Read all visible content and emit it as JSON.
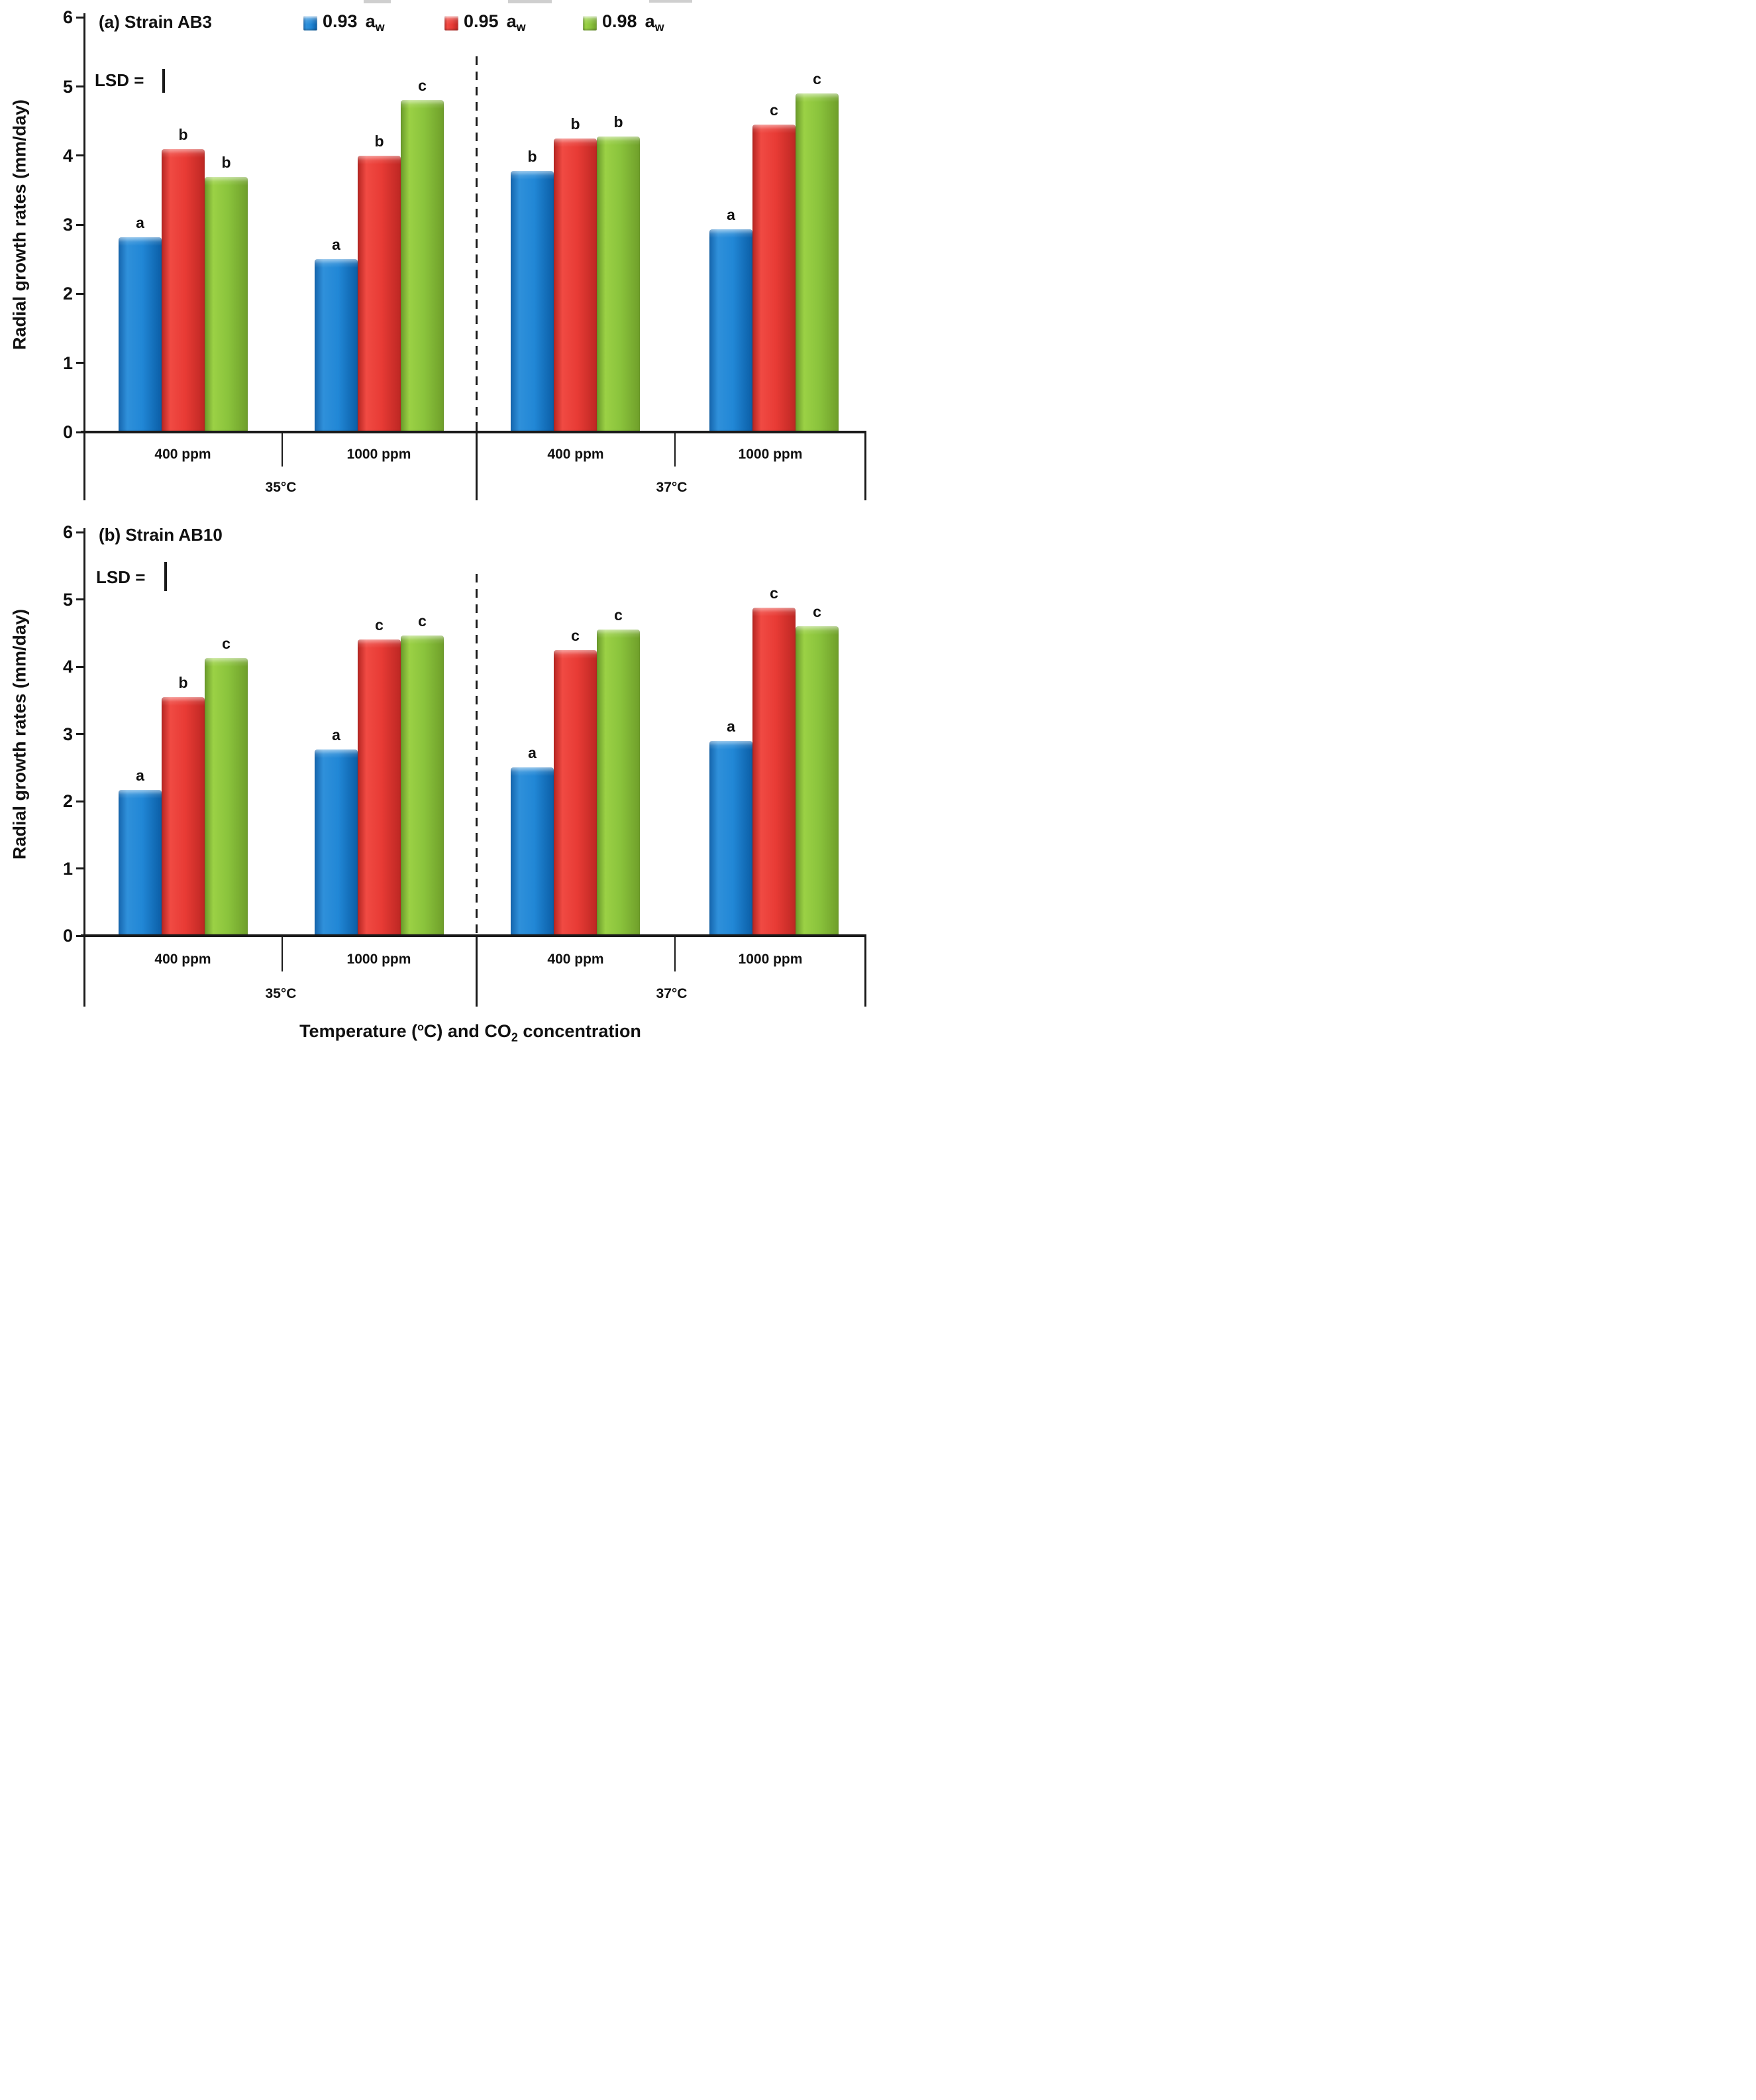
{
  "figure": {
    "legend": [
      {
        "value": "0.93",
        "symbol": "a",
        "sub": "w",
        "series_color": "#1f7ecf"
      },
      {
        "value": "0.95",
        "symbol": "a",
        "sub": "w",
        "series_color": "#e83b35"
      },
      {
        "value": "0.98",
        "symbol": "a",
        "sub": "w",
        "series_color": "#8ac33c"
      }
    ],
    "xaxis_title": {
      "t1": "Temperature (",
      "sup": "o",
      "t2": "C) and CO",
      "sub": "2",
      "t3": " concentration"
    }
  },
  "chart_data": [
    {
      "type": "bar",
      "panel_label": "(a) Strain AB3",
      "lsd_label": "LSD =",
      "ylabel": "Radial growth rates (mm/day)",
      "ylim": [
        0,
        6
      ],
      "yticks": [
        "0",
        "1",
        "2",
        "3",
        "4",
        "5",
        "6"
      ],
      "categories": [
        "400 ppm",
        "1000 ppm",
        "400 ppm",
        "1000 ppm"
      ],
      "group_labels": [
        "35°C",
        "37°C"
      ],
      "series": [
        {
          "name": "0.93 aw",
          "color": "#1f7ecf",
          "values": [
            2.82,
            2.5,
            3.78,
            2.93
          ]
        },
        {
          "name": "0.95 aw",
          "color": "#e83b35",
          "values": [
            4.09,
            4.0,
            4.25,
            4.45
          ]
        },
        {
          "name": "0.98 aw",
          "color": "#8ac33c",
          "values": [
            3.69,
            4.8,
            4.28,
            4.9
          ]
        }
      ],
      "letters": [
        [
          "a",
          "b",
          "b"
        ],
        [
          "a",
          "b",
          "c"
        ],
        [
          "b",
          "b",
          "b"
        ],
        [
          "a",
          "c",
          "c"
        ]
      ],
      "legend_position": "top",
      "grid": "off"
    },
    {
      "type": "bar",
      "panel_label": "(b) Strain AB10",
      "lsd_label": "LSD =",
      "ylabel": "Radial growth rates (mm/day)",
      "ylim": [
        0,
        6
      ],
      "yticks": [
        "0",
        "1",
        "2",
        "3",
        "4",
        "5",
        "6"
      ],
      "categories": [
        "400 ppm",
        "1000 ppm",
        "400 ppm",
        "1000 ppm"
      ],
      "group_labels": [
        "35°C",
        "37°C"
      ],
      "series": [
        {
          "name": "0.93 aw",
          "color": "#1f7ecf",
          "values": [
            2.17,
            2.77,
            2.5,
            2.9
          ]
        },
        {
          "name": "0.95 aw",
          "color": "#e83b35",
          "values": [
            3.55,
            4.4,
            4.25,
            4.88
          ]
        },
        {
          "name": "0.98 aw",
          "color": "#8ac33c",
          "values": [
            4.13,
            4.46,
            4.55,
            4.6
          ]
        }
      ],
      "letters": [
        [
          "a",
          "b",
          "c"
        ],
        [
          "a",
          "c",
          "c"
        ],
        [
          "a",
          "c",
          "c"
        ],
        [
          "a",
          "c",
          "c"
        ]
      ],
      "legend_position": "none",
      "grid": "off"
    }
  ]
}
